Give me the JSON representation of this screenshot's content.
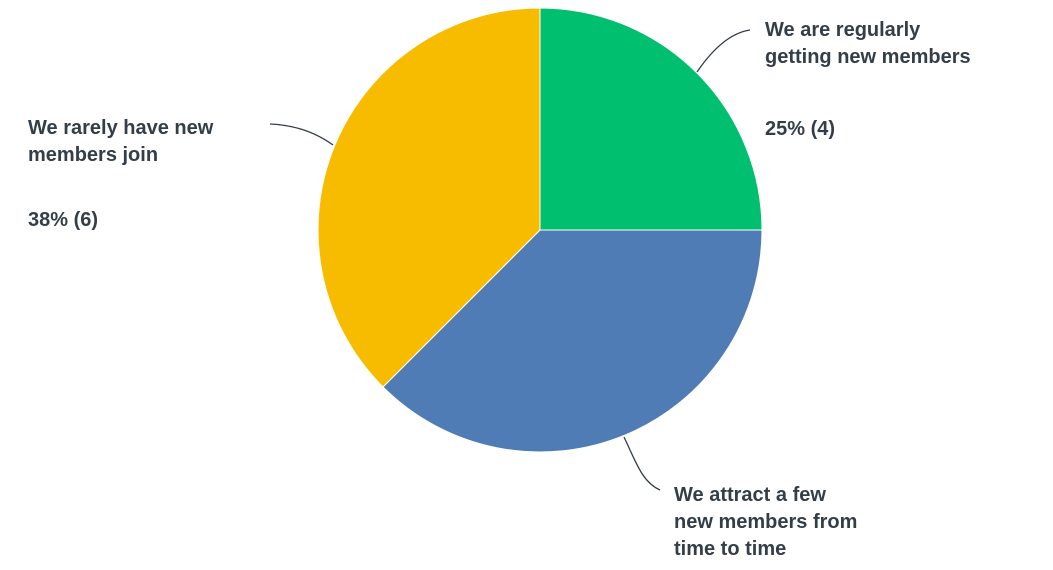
{
  "chart_data": {
    "type": "pie",
    "slices": [
      {
        "label": "We are regularly\ngetting new members",
        "value_text": "25% (4)",
        "percent": 25,
        "count": 4,
        "color": "#00bf6f"
      },
      {
        "label": "We attract a few\nnew members from\ntime to time",
        "value_text": "",
        "percent": 38,
        "count": 6,
        "color": "#507cb6"
      },
      {
        "label": "We rarely have new\nmembers join",
        "value_text": "38% (6)",
        "percent": 38,
        "count": 6,
        "color": "#f7bc00"
      }
    ],
    "start_angle": "12 o'clock",
    "direction": "clockwise",
    "legend": "none"
  }
}
